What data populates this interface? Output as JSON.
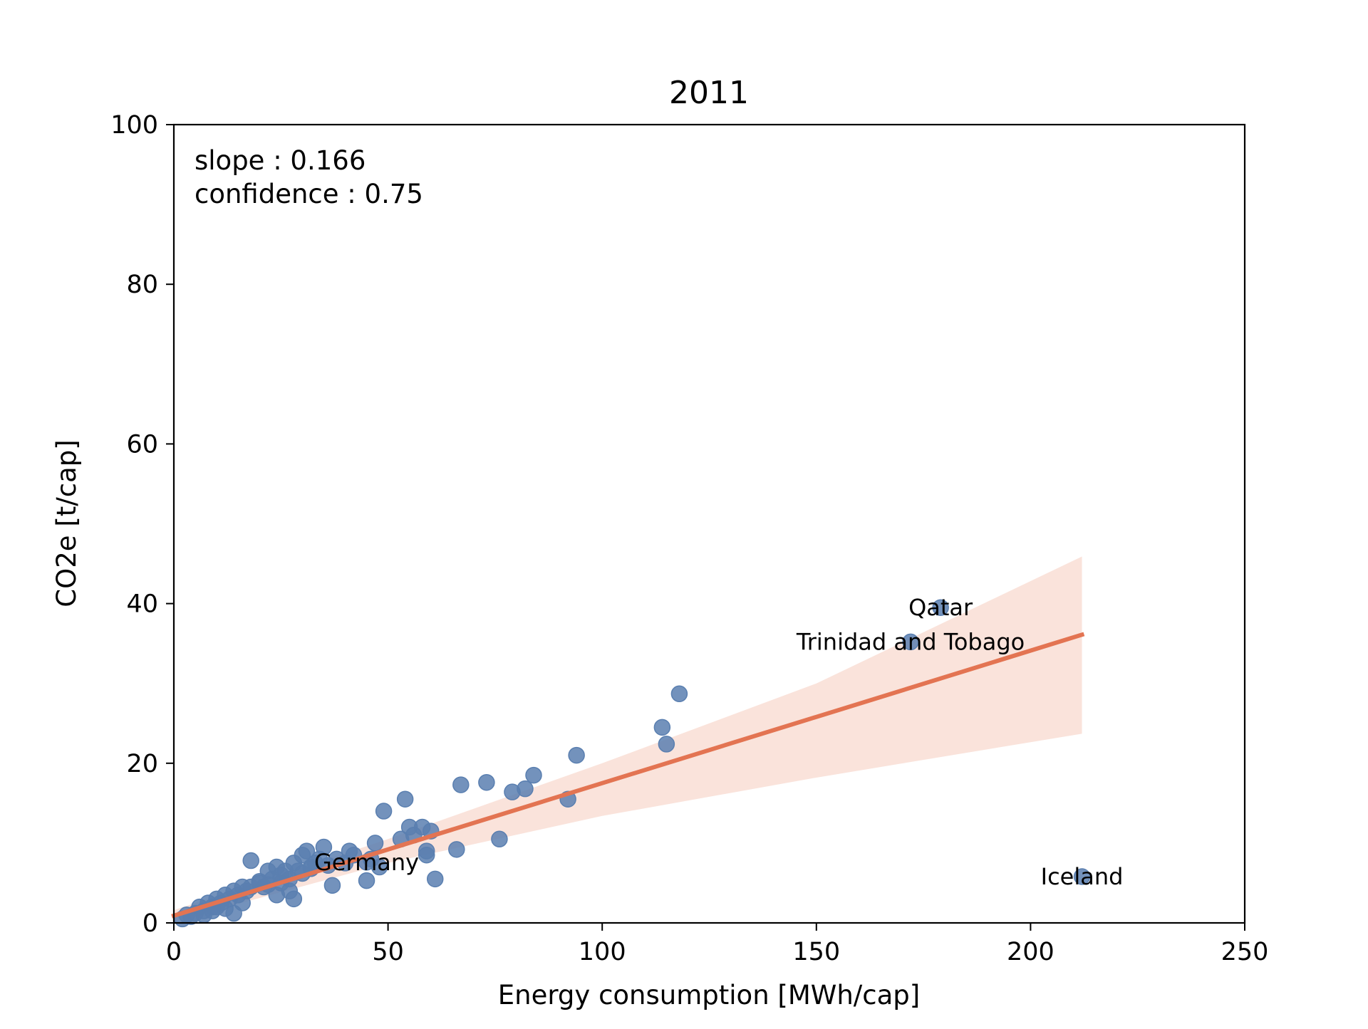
{
  "chart_data": {
    "type": "scatter",
    "title": "2011",
    "xlabel": "Energy consumption [MWh/cap]",
    "ylabel": "CO2e [t/cap]",
    "xlim": [
      0,
      250
    ],
    "ylim": [
      0,
      100
    ],
    "xticks": [
      0,
      50,
      100,
      150,
      200,
      250
    ],
    "yticks": [
      0,
      20,
      40,
      60,
      80,
      100
    ],
    "grid": false,
    "annotation_lines": [
      "slope : 0.166",
      "confidence : 0.75"
    ],
    "colors": {
      "points": "#5a7fb0",
      "fit_line": "#e37452",
      "confidence_band": "#fae3db"
    },
    "regression": {
      "x": [
        0,
        212
      ],
      "y": [
        0.9,
        36.1
      ],
      "band_x": [
        0,
        50,
        100,
        150,
        212
      ],
      "band_upper": [
        1.6,
        10.5,
        20.0,
        30.0,
        45.9
      ],
      "band_lower": [
        0.2,
        7.5,
        13.4,
        18.2,
        23.7
      ]
    },
    "labeled_points": [
      {
        "label": "Qatar",
        "x": 179,
        "y": 39.5
      },
      {
        "label": "Trinidad and Tobago",
        "x": 172,
        "y": 35.2
      },
      {
        "label": "Iceland",
        "x": 212,
        "y": 5.8
      },
      {
        "label": "Germany",
        "x": 45,
        "y": 7.6
      }
    ],
    "series": [
      {
        "name": "countries",
        "x": [
          2,
          3,
          4,
          5,
          6,
          7,
          8,
          9,
          10,
          11,
          12,
          13,
          14,
          15,
          16,
          17,
          18,
          18,
          20,
          21,
          22,
          23,
          24,
          24,
          25,
          26,
          27,
          28,
          28,
          29,
          30,
          31,
          32,
          33,
          34,
          35,
          37,
          38,
          40,
          41,
          42,
          45,
          46,
          47,
          48,
          49,
          53,
          54,
          55,
          56,
          58,
          59,
          59,
          60,
          61,
          66,
          67,
          73,
          76,
          79,
          82,
          84,
          92,
          94,
          114,
          115,
          118,
          179,
          172,
          212,
          45,
          7,
          9,
          10,
          12,
          14,
          16,
          20,
          22,
          25,
          27,
          30,
          32,
          36
        ],
        "y": [
          0.5,
          1.0,
          0.8,
          1.2,
          2.0,
          1.5,
          2.5,
          2.0,
          3.0,
          2.5,
          3.5,
          3.0,
          4.0,
          3.5,
          4.5,
          4.0,
          4.5,
          7.8,
          5.0,
          4.5,
          6.5,
          5.5,
          7.0,
          3.5,
          6.0,
          6.5,
          4.0,
          7.5,
          3.0,
          6.5,
          8.5,
          9.0,
          7.0,
          7.5,
          8.0,
          9.5,
          4.7,
          8.0,
          7.5,
          9.0,
          8.5,
          5.3,
          8.0,
          10.0,
          7.0,
          14.0,
          10.5,
          15.5,
          12.0,
          11.0,
          12.0,
          9.0,
          8.5,
          11.5,
          5.5,
          9.2,
          17.3,
          17.6,
          10.5,
          16.4,
          16.8,
          18.5,
          15.5,
          21.0,
          24.5,
          22.4,
          28.7,
          39.5,
          35.2,
          5.8,
          7.6,
          1.0,
          1.5,
          2.0,
          1.8,
          1.2,
          2.5,
          5.2,
          4.8,
          5.0,
          5.5,
          6.2,
          6.8,
          7.2
        ]
      }
    ]
  }
}
